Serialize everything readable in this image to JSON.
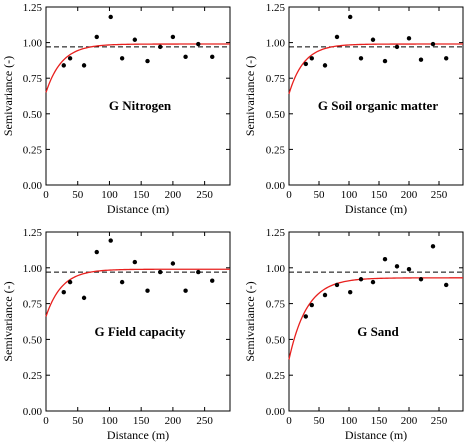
{
  "chart_data": [
    {
      "type": "scatter",
      "title": "G Nitrogen",
      "xlabel": "Distance (m)",
      "ylabel": "Semivariance (-)",
      "xlim": [
        0,
        290
      ],
      "ylim": [
        0,
        1.25
      ],
      "xticks": [
        "0",
        "50",
        "100",
        "150",
        "200",
        "250"
      ],
      "yticks": [
        "0.00",
        "0.25",
        "0.50",
        "0.75",
        "1.00",
        "1.25"
      ],
      "sill_line": 0.97,
      "points": [
        [
          28,
          0.84
        ],
        [
          38,
          0.89
        ],
        [
          60,
          0.84
        ],
        [
          80,
          1.04
        ],
        [
          102,
          1.18
        ],
        [
          120,
          0.89
        ],
        [
          140,
          1.02
        ],
        [
          160,
          0.87
        ],
        [
          180,
          0.97
        ],
        [
          200,
          1.04
        ],
        [
          220,
          0.9
        ],
        [
          240,
          0.99
        ],
        [
          262,
          0.9
        ]
      ],
      "model": {
        "type": "exponential",
        "nugget": 0.65,
        "sill": 0.99,
        "range": 25
      },
      "grid": false
    },
    {
      "type": "scatter",
      "title": "G Soil organic matter",
      "xlabel": "Distance (m)",
      "ylabel": "Semivariance (-)",
      "xlim": [
        0,
        290
      ],
      "ylim": [
        0,
        1.25
      ],
      "xticks": [
        "0",
        "50",
        "100",
        "150",
        "200",
        "250"
      ],
      "yticks": [
        "0.00",
        "0.25",
        "0.50",
        "0.75",
        "1.00",
        "1.25"
      ],
      "sill_line": 0.97,
      "points": [
        [
          28,
          0.85
        ],
        [
          38,
          0.89
        ],
        [
          60,
          0.84
        ],
        [
          80,
          1.04
        ],
        [
          102,
          1.18
        ],
        [
          120,
          0.89
        ],
        [
          140,
          1.02
        ],
        [
          160,
          0.87
        ],
        [
          180,
          0.97
        ],
        [
          200,
          1.03
        ],
        [
          220,
          0.88
        ],
        [
          240,
          0.99
        ],
        [
          262,
          0.89
        ]
      ],
      "model": {
        "type": "exponential",
        "nugget": 0.64,
        "sill": 0.99,
        "range": 25
      },
      "grid": false
    },
    {
      "type": "scatter",
      "title": "G Field capacity",
      "xlabel": "Distance (m)",
      "ylabel": "Semivariance (-)",
      "xlim": [
        0,
        290
      ],
      "ylim": [
        0,
        1.25
      ],
      "xticks": [
        "0",
        "50",
        "100",
        "150",
        "200",
        "250"
      ],
      "yticks": [
        "0.00",
        "0.25",
        "0.50",
        "0.75",
        "1.00",
        "1.25"
      ],
      "sill_line": 0.97,
      "points": [
        [
          28,
          0.83
        ],
        [
          38,
          0.9
        ],
        [
          60,
          0.79
        ],
        [
          80,
          1.11
        ],
        [
          102,
          1.19
        ],
        [
          120,
          0.9
        ],
        [
          140,
          1.04
        ],
        [
          160,
          0.84
        ],
        [
          180,
          0.97
        ],
        [
          200,
          1.03
        ],
        [
          220,
          0.84
        ],
        [
          240,
          0.97
        ],
        [
          262,
          0.91
        ]
      ],
      "model": {
        "type": "exponential",
        "nugget": 0.66,
        "sill": 0.99,
        "range": 25
      },
      "grid": false
    },
    {
      "type": "scatter",
      "title": "G Sand",
      "xlabel": "Distance (m)",
      "ylabel": "Semivariance (-)",
      "xlim": [
        0,
        290
      ],
      "ylim": [
        0,
        1.25
      ],
      "xticks": [
        "0",
        "50",
        "100",
        "150",
        "200",
        "250"
      ],
      "yticks": [
        "0.00",
        "0.25",
        "0.50",
        "0.75",
        "1.00",
        "1.25"
      ],
      "sill_line": 0.97,
      "points": [
        [
          28,
          0.66
        ],
        [
          38,
          0.74
        ],
        [
          60,
          0.81
        ],
        [
          80,
          0.88
        ],
        [
          102,
          0.83
        ],
        [
          120,
          0.92
        ],
        [
          140,
          0.9
        ],
        [
          160,
          1.06
        ],
        [
          180,
          1.01
        ],
        [
          200,
          0.99
        ],
        [
          220,
          0.92
        ],
        [
          240,
          1.15
        ],
        [
          262,
          0.88
        ]
      ],
      "model": {
        "type": "exponential",
        "nugget": 0.36,
        "sill": 0.93,
        "range": 30
      },
      "grid": false
    }
  ]
}
